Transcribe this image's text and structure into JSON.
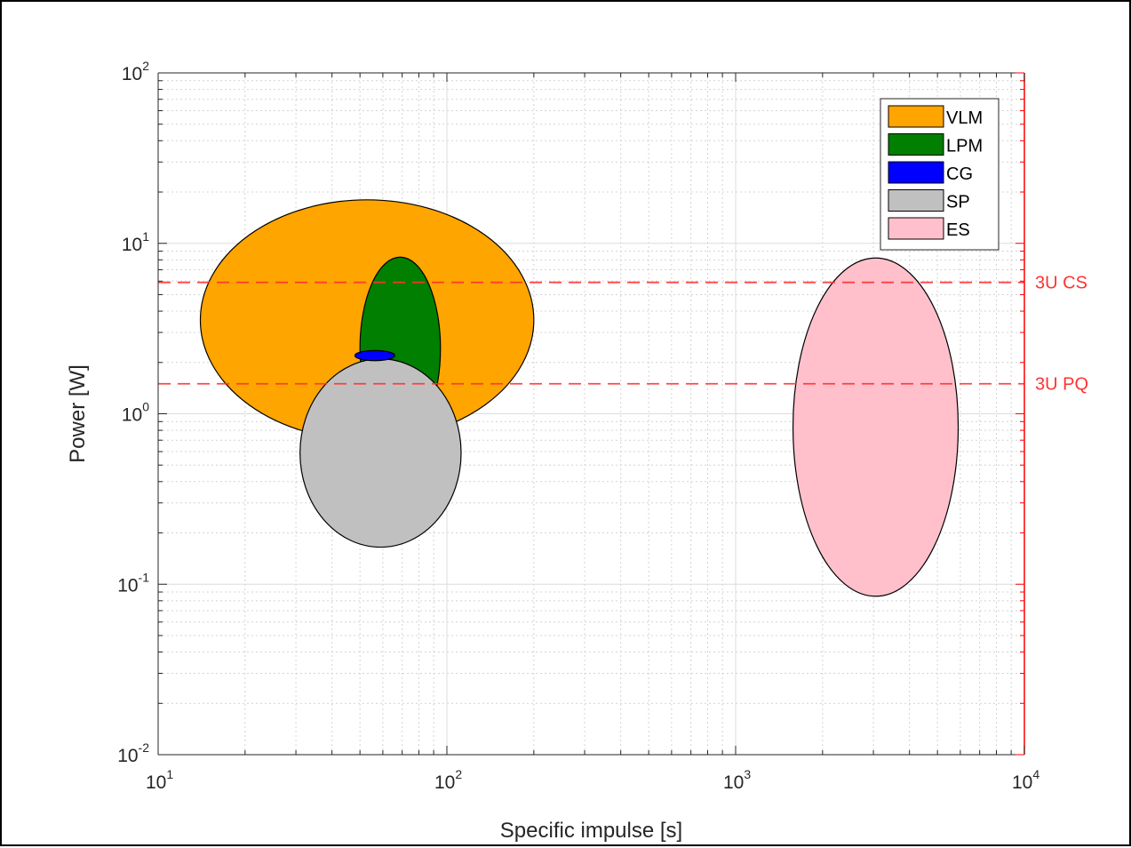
{
  "chart_data": {
    "type": "scatter",
    "xlabel": "Specific impulse [s]",
    "ylabel": "Power [W]",
    "xscale": "log",
    "yscale": "log",
    "xlim": [
      10,
      10000
    ],
    "ylim": [
      0.01,
      100
    ],
    "grid": true,
    "minor_grid": true,
    "legend_position": "top-right",
    "x_ticks": [
      {
        "value": 10,
        "base": "10",
        "exp": "1"
      },
      {
        "value": 100,
        "base": "10",
        "exp": "2"
      },
      {
        "value": 1000,
        "base": "10",
        "exp": "3"
      },
      {
        "value": 10000,
        "base": "10",
        "exp": "4"
      }
    ],
    "y_ticks": [
      {
        "value": 0.01,
        "base": "10",
        "exp": "-2"
      },
      {
        "value": 0.1,
        "base": "10",
        "exp": "-1"
      },
      {
        "value": 1,
        "base": "10",
        "exp": "0"
      },
      {
        "value": 10,
        "base": "10",
        "exp": "1"
      },
      {
        "value": 100,
        "base": "10",
        "exp": "2"
      }
    ],
    "regions": [
      {
        "name": "VLM",
        "color": "#FFA500",
        "isp_range": [
          14,
          200
        ],
        "power_range": [
          0.7,
          18
        ]
      },
      {
        "name": "LPM",
        "color": "#007F00",
        "isp_range": [
          50,
          95
        ],
        "power_range": [
          0.7,
          8.3
        ]
      },
      {
        "name": "SP",
        "color": "#C0C0C0",
        "isp_range": [
          31,
          112
        ],
        "power_range": [
          0.165,
          2.1
        ]
      },
      {
        "name": "CG",
        "color": "#0000FF",
        "isp_range": [
          48,
          66
        ],
        "power_range": [
          2.05,
          2.35
        ]
      },
      {
        "name": "ES",
        "color": "#FFC0CB",
        "isp_range": [
          1580,
          5900
        ],
        "power_range": [
          0.085,
          8.2
        ]
      }
    ],
    "legend_order": [
      "VLM",
      "LPM",
      "CG",
      "SP",
      "ES"
    ],
    "reference_lines": [
      {
        "label": "3U CS",
        "power": 5.9,
        "color": "#FF3333"
      },
      {
        "label": "3U PQ",
        "power": 1.5,
        "color": "#FF3333"
      }
    ],
    "right_axis_color": "#FF0000"
  }
}
